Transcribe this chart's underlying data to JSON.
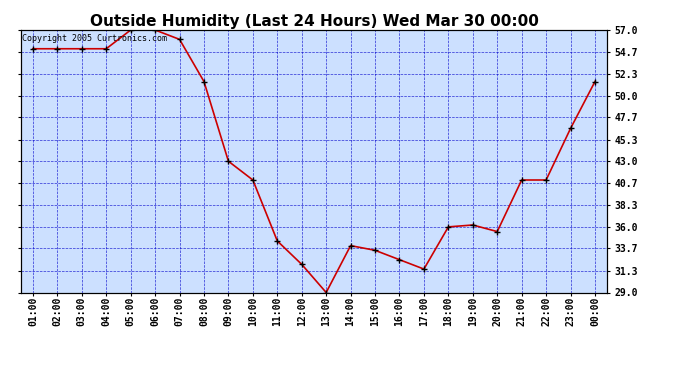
{
  "title": "Outside Humidity (Last 24 Hours) Wed Mar 30 00:00",
  "x_labels": [
    "01:00",
    "02:00",
    "03:00",
    "04:00",
    "05:00",
    "06:00",
    "07:00",
    "08:00",
    "09:00",
    "10:00",
    "11:00",
    "12:00",
    "13:00",
    "14:00",
    "15:00",
    "16:00",
    "17:00",
    "18:00",
    "19:00",
    "20:00",
    "21:00",
    "22:00",
    "23:00",
    "00:00"
  ],
  "x_values": [
    1,
    2,
    3,
    4,
    5,
    6,
    7,
    8,
    9,
    10,
    11,
    12,
    13,
    14,
    15,
    16,
    17,
    18,
    19,
    20,
    21,
    22,
    23,
    24
  ],
  "y_values": [
    55.0,
    55.0,
    55.0,
    55.0,
    57.0,
    57.0,
    56.0,
    51.5,
    43.0,
    41.0,
    34.5,
    32.0,
    29.0,
    34.0,
    33.5,
    32.5,
    31.5,
    36.0,
    36.2,
    35.5,
    41.0,
    41.0,
    46.5,
    51.5
  ],
  "line_color": "#cc0000",
  "marker_color": "#000000",
  "fig_bg_color": "#ffffff",
  "plot_bg_color": "#cce0ff",
  "grid_color": "#0000cc",
  "ylabel_right": [
    "57.0",
    "54.7",
    "52.3",
    "50.0",
    "47.7",
    "45.3",
    "43.0",
    "40.7",
    "38.3",
    "36.0",
    "33.7",
    "31.3",
    "29.0"
  ],
  "ylim": [
    29.0,
    57.0
  ],
  "copyright": "Copyright 2005 Curtronics.com",
  "title_fontsize": 11,
  "tick_fontsize": 7,
  "copy_fontsize": 6
}
